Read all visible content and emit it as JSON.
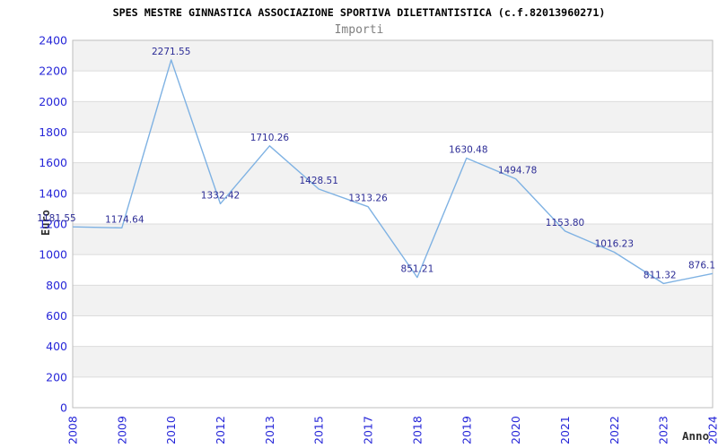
{
  "chart_data": {
    "type": "line",
    "title": "SPES MESTRE GINNASTICA ASSOCIAZIONE SPORTIVA DILETTANTISTICA (c.f.82013960271)",
    "subtitle": "Importi",
    "xlabel": "Anno",
    "ylabel": "Euro",
    "categories": [
      "2008",
      "2009",
      "2010",
      "2012",
      "2013",
      "2015",
      "2017",
      "2018",
      "2019",
      "2020",
      "2021",
      "2022",
      "2023",
      "2024"
    ],
    "values": [
      1181.55,
      1174.64,
      2271.55,
      1332.42,
      1710.26,
      1428.51,
      1313.26,
      851.21,
      1630.48,
      1494.78,
      1153.8,
      1016.23,
      811.32,
      876.1
    ],
    "value_labels": [
      "1181.55",
      "1174.64",
      "2271.55",
      "1332.42",
      "1710.26",
      "1428.51",
      "1313.26",
      "851.21",
      "1630.48",
      "1494.78",
      "1153.80",
      "1016.23",
      "811.32",
      "876.1"
    ],
    "ylim": [
      0,
      2400
    ],
    "ytick_step": 200,
    "yticks": [
      0,
      200,
      400,
      600,
      800,
      1000,
      1200,
      1400,
      1600,
      1800,
      2000,
      2200,
      2400
    ],
    "grid": true,
    "alternating_bands": true,
    "legend_position": "none",
    "label_dx": [
      -18,
      3,
      0,
      0,
      0,
      0,
      0,
      0,
      2,
      2,
      0,
      0,
      -4,
      -12
    ],
    "colors": {
      "line": "#7fb2e3",
      "value_label": "#2c2c96",
      "tick_label": "#2626d8",
      "band_gray": "#f2f2f2",
      "band_white": "#ffffff",
      "grid": "#dcdcdc",
      "border": "#bdbdbd",
      "title": "#000000",
      "subtitle": "#7f7f7f",
      "axis_title": "#2e2e2e"
    }
  }
}
